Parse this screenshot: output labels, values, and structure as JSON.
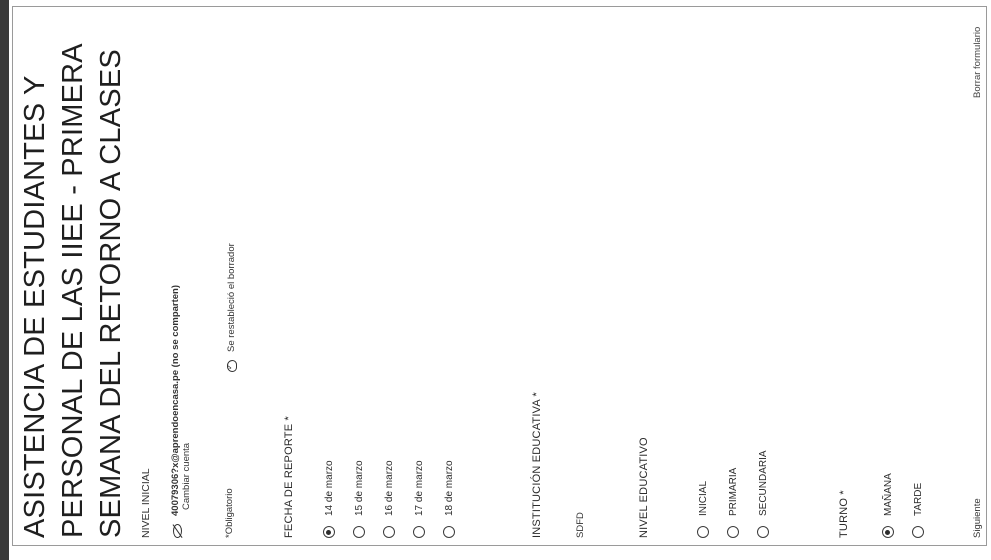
{
  "form": {
    "title_lines": [
      "ASISTENCIA DE ESTUDIANTES Y",
      "PERSONAL DE LAS IIEE - PRIMERA",
      "SEMANA DEL RETORNO A CLASES"
    ],
    "subtitle": "NIVEL INICIAL",
    "account_email": "40079306?x@aprendoencasa.pe (no se comparten)",
    "switch_account": "Cambiar cuenta",
    "draft_status": "Se restableció el borrador",
    "required_note": "*Obligatorio",
    "clear_form": "Borrar formulario",
    "next_button": "Siguiente"
  },
  "questions": {
    "fecha": {
      "label": "FECHA DE REPORTE *",
      "options": [
        "14 de marzo",
        "15 de marzo",
        "16 de marzo",
        "17 de marzo",
        "18 de marzo"
      ],
      "selected": "14 de marzo"
    },
    "institucion": {
      "label": "INSTITUCIÓN EDUCATIVA *",
      "value": "SDFD"
    },
    "nivel": {
      "label": "NIVEL EDUCATIVO",
      "options": [
        "INICIAL",
        "PRIMARIA",
        "SECUNDARIA"
      ],
      "selected": ""
    },
    "turno": {
      "label": "TURNO *",
      "options": [
        "MAÑANA",
        "TARDE"
      ],
      "selected": "MAÑANA"
    }
  },
  "icons": {
    "account": "eye-off-icon",
    "draft": "cloud-check-icon"
  }
}
